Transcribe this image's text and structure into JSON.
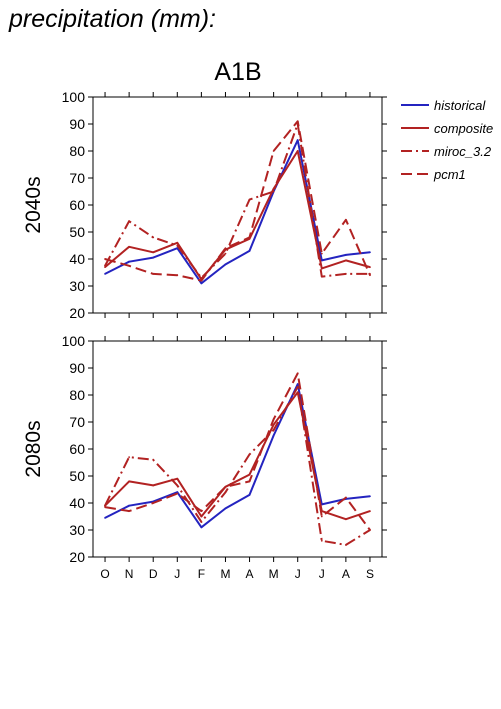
{
  "heading": "precipitation (mm):",
  "scenario": "A1B",
  "colors": {
    "historical": "#2424c0",
    "model": "#b22222"
  },
  "legend": [
    {
      "name": "historical",
      "dash": "solid",
      "color": "#2424c0"
    },
    {
      "name": "composite",
      "dash": "solid",
      "color": "#b22222"
    },
    {
      "name": "miroc_3.2",
      "dash": "dashdot",
      "color": "#b22222"
    },
    {
      "name": "pcm1",
      "dash": "dash",
      "color": "#b22222"
    }
  ],
  "chart_data": [
    {
      "type": "line",
      "ylabel": "2040s",
      "ylim": [
        20,
        100
      ],
      "yticks": [
        20,
        30,
        40,
        50,
        60,
        70,
        80,
        90,
        100
      ],
      "categories": [
        "O",
        "N",
        "D",
        "J",
        "F",
        "M",
        "A",
        "M",
        "J",
        "J",
        "A",
        "S"
      ],
      "show_xtick_labels": false,
      "series": [
        {
          "name": "historical",
          "style": "solid",
          "color": "#2424c0",
          "values": [
            34.5,
            39,
            40.5,
            44,
            31,
            38,
            43,
            65,
            84,
            39.5,
            41.5,
            42.5
          ]
        },
        {
          "name": "composite",
          "style": "solid",
          "color": "#b22222",
          "values": [
            37,
            44.5,
            42.5,
            46,
            32.5,
            43.5,
            47.5,
            66,
            80,
            36.5,
            39.5,
            37
          ]
        },
        {
          "name": "miroc_3.2",
          "style": "dashdot",
          "color": "#b22222",
          "values": [
            37.5,
            54,
            48,
            45,
            33,
            42,
            62,
            65,
            90,
            33.5,
            34.5,
            34.5
          ]
        },
        {
          "name": "pcm1",
          "style": "dash",
          "color": "#b22222",
          "values": [
            40,
            37.5,
            34.5,
            34,
            32,
            44,
            48,
            80,
            91,
            42,
            54.5,
            34
          ]
        }
      ]
    },
    {
      "type": "line",
      "ylabel": "2080s",
      "ylim": [
        20,
        100
      ],
      "yticks": [
        20,
        30,
        40,
        50,
        60,
        70,
        80,
        90,
        100
      ],
      "categories": [
        "O",
        "N",
        "D",
        "J",
        "F",
        "M",
        "A",
        "M",
        "J",
        "J",
        "A",
        "S"
      ],
      "show_xtick_labels": true,
      "series": [
        {
          "name": "historical",
          "style": "solid",
          "color": "#2424c0",
          "values": [
            34.5,
            39,
            40.5,
            44,
            31,
            38,
            43,
            65,
            84,
            39.5,
            41.5,
            42.5
          ]
        },
        {
          "name": "composite",
          "style": "solid",
          "color": "#b22222",
          "values": [
            39,
            48,
            46.5,
            49,
            35,
            46,
            50.5,
            69,
            81,
            37,
            34,
            37
          ]
        },
        {
          "name": "miroc_3.2",
          "style": "dashdot",
          "color": "#b22222",
          "values": [
            39,
            57,
            56,
            46.5,
            33,
            44,
            58,
            67,
            83,
            26,
            24.5,
            30
          ]
        },
        {
          "name": "pcm1",
          "style": "dash",
          "color": "#b22222",
          "values": [
            38.5,
            37,
            40,
            43.5,
            37,
            46,
            48,
            71,
            88,
            35,
            42,
            30
          ]
        }
      ]
    }
  ]
}
